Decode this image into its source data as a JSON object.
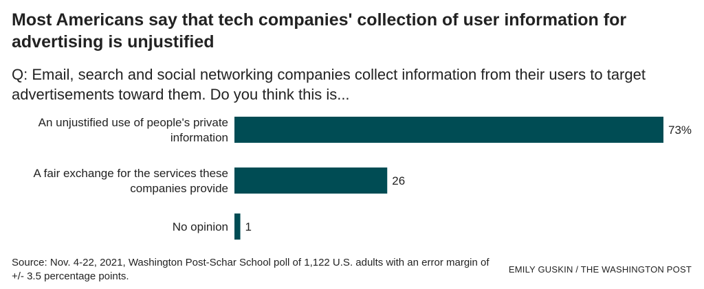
{
  "title": "Most Americans say that tech companies' collection of user information for advertising is unjustified",
  "subtitle": "Q: Email, search and social networking companies collect information from their users to target advertisements toward them. Do you think this is...",
  "source": "Source: Nov. 4-22, 2021, Washington Post-Schar School poll of 1,122 U.S. adults with an error margin of +/- 3.5 percentage points.",
  "credit": "EMILY GUSKIN / THE WASHINGTON POST",
  "colors": {
    "bar": "#004c54",
    "text": "#222222"
  },
  "chart_data": {
    "type": "bar",
    "orientation": "horizontal",
    "categories": [
      [
        "An unjustified use of people's private",
        "information"
      ],
      [
        "A fair exchange for the services these",
        "companies provide"
      ],
      [
        "No opinion"
      ]
    ],
    "values": [
      73,
      26,
      1
    ],
    "value_labels": [
      "73%",
      "26",
      "1"
    ],
    "xlim": [
      0,
      73
    ],
    "grid": false,
    "legend": "none"
  }
}
